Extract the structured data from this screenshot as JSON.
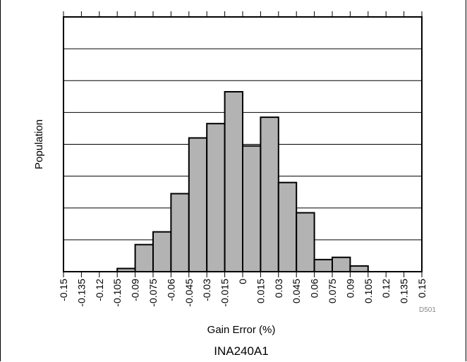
{
  "chart_data": {
    "type": "bar",
    "title": "INA240A1",
    "xlabel": "Gain Error (%)",
    "ylabel": "Population",
    "figure_code": "D501",
    "x_ticks": [
      "-0.15",
      "-0.135",
      "-0.12",
      "-0.105",
      "-0.09",
      "-0.075",
      "-0.06",
      "-0.045",
      "-0.03",
      "-0.015",
      "0",
      "0.015",
      "0.03",
      "0.045",
      "0.06",
      "0.075",
      "0.09",
      "0.105",
      "0.12",
      "0.135",
      "0.15"
    ],
    "x_range": [
      -0.15,
      0.15
    ],
    "bin_width": 0.015,
    "bins": [
      {
        "start": -0.15,
        "end": -0.135,
        "value": 0
      },
      {
        "start": -0.135,
        "end": -0.12,
        "value": 0
      },
      {
        "start": -0.12,
        "end": -0.105,
        "value": 0
      },
      {
        "start": -0.105,
        "end": -0.09,
        "value": 0.1
      },
      {
        "start": -0.09,
        "end": -0.075,
        "value": 0.85
      },
      {
        "start": -0.075,
        "end": -0.06,
        "value": 1.25
      },
      {
        "start": -0.06,
        "end": -0.045,
        "value": 2.45
      },
      {
        "start": -0.045,
        "end": -0.03,
        "value": 4.2
      },
      {
        "start": -0.03,
        "end": -0.015,
        "value": 4.65
      },
      {
        "start": -0.015,
        "end": 0.0,
        "value": 5.65
      },
      {
        "start": 0.0,
        "end": 0.015,
        "value": 3.95
      },
      {
        "start": 0.015,
        "end": 0.03,
        "value": 4.85
      },
      {
        "start": 0.03,
        "end": 0.045,
        "value": 2.8
      },
      {
        "start": 0.045,
        "end": 0.06,
        "value": 1.85
      },
      {
        "start": 0.06,
        "end": 0.075,
        "value": 0.38
      },
      {
        "start": 0.075,
        "end": 0.09,
        "value": 0.45
      },
      {
        "start": 0.09,
        "end": 0.105,
        "value": 0.18
      },
      {
        "start": 0.105,
        "end": 0.12,
        "value": 0
      },
      {
        "start": 0.12,
        "end": 0.135,
        "value": 0
      },
      {
        "start": 0.135,
        "end": 0.15,
        "value": 0
      }
    ],
    "ylim": [
      0,
      8
    ],
    "y_gridlines": [
      1,
      2,
      3,
      4,
      5,
      6,
      7
    ],
    "y_tick_labels_shown": false,
    "grid": "horizontal",
    "colors": {
      "bar_fill": "#b3b3b3",
      "bar_edge": "#000000",
      "grid": "#000000"
    }
  }
}
